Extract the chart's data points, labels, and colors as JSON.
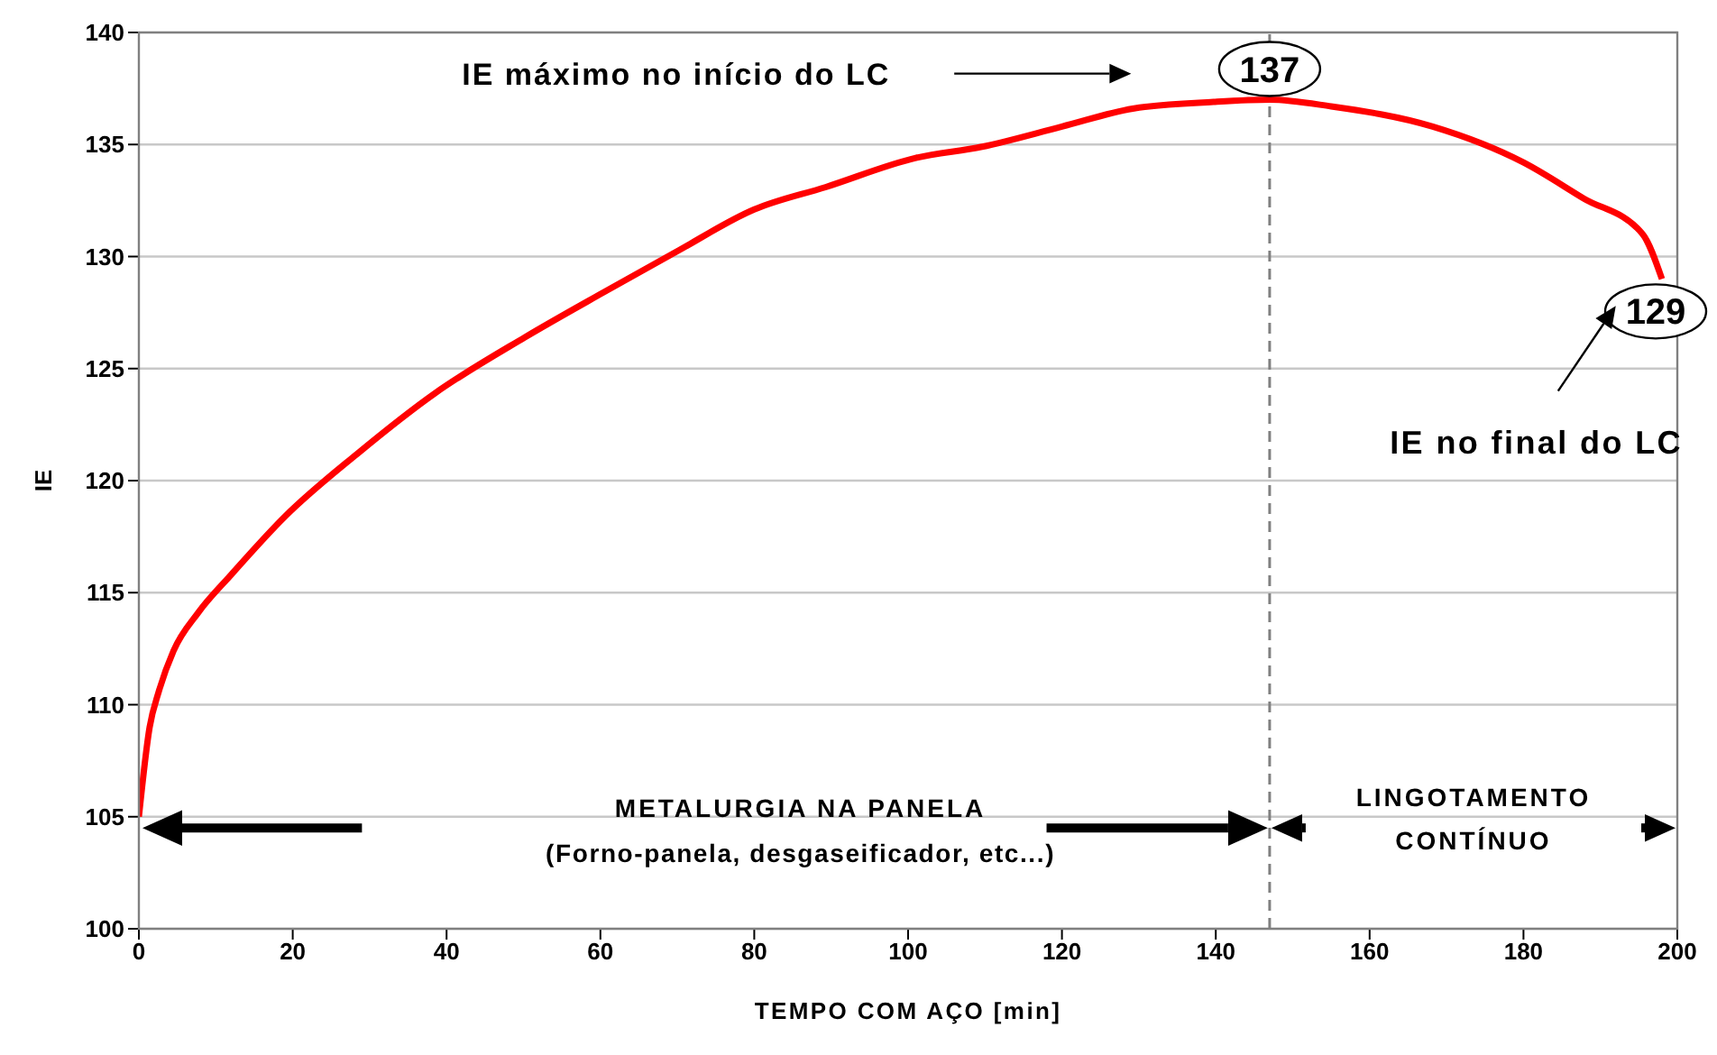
{
  "chart_data": {
    "type": "line",
    "xlabel": "TEMPO COM AÇO [min]",
    "ylabel": "IE",
    "xlim": [
      0,
      200
    ],
    "xticks": [
      0,
      20,
      40,
      60,
      80,
      100,
      120,
      140,
      160,
      180,
      200
    ],
    "ylim": [
      100,
      140
    ],
    "yticks": [
      100,
      105,
      110,
      115,
      120,
      125,
      130,
      135,
      140
    ],
    "grid": "y",
    "marker": "none",
    "line_style": "solid",
    "series": [
      {
        "color": "#ff0000",
        "x": [
          0,
          1.4,
          2.6,
          4.5,
          7.7,
          12,
          19,
          28.4,
          38.5,
          50.2,
          60.4,
          69.8,
          80,
          89.3,
          101,
          109.6,
          120,
          129.2,
          139.7,
          147,
          155,
          168.2,
          180,
          187.8,
          195.5,
          198
        ],
        "values": [
          105,
          109,
          110.6,
          112.4,
          114.1,
          115.8,
          118.4,
          121.2,
          123.9,
          126.4,
          128.4,
          130.2,
          132.1,
          133.1,
          134.4,
          134.9,
          135.8,
          136.6,
          136.9,
          137,
          136.7,
          135.8,
          134.2,
          132.6,
          131,
          129
        ]
      }
    ],
    "ref_lines": [
      {
        "axis": "x",
        "value": 147,
        "color": "#808080",
        "line_style": "dashed"
      }
    ],
    "annotations": [
      "IE máximo no início do LC",
      {
        "text": "137",
        "x": 147,
        "y": 137
      },
      {
        "text": "129",
        "x": 198,
        "y": 129
      },
      "IE no final do LC",
      "METALURGIA NA PANELA",
      "(Forno-panela, desgaseificador, etc...)",
      "LINGOTAMENTO CONTÍNUO"
    ]
  }
}
